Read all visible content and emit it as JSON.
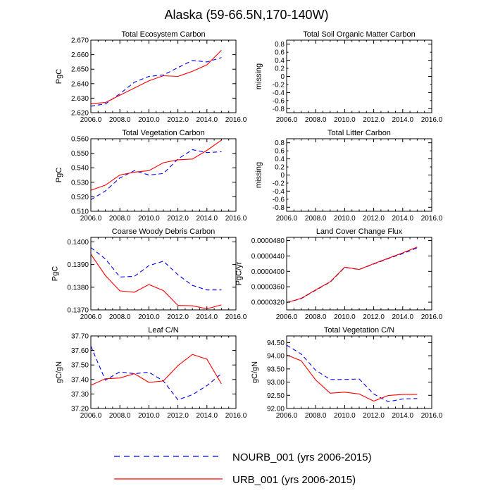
{
  "title": "Alaska (59-66.5N,170-140W)",
  "colors": {
    "nourb": "#0000ff",
    "urb": "#ff0000",
    "axis": "#000000"
  },
  "legend": {
    "nourb_label": "NOURB_001 (yrs 2006-2015)",
    "urb_label": "URB_001 (yrs 2006-2015)"
  },
  "chart_data": [
    {
      "type": "line",
      "title": "Total Ecosystem Carbon",
      "xlabel": "",
      "ylabel": "PgC",
      "xlim": [
        2006,
        2016
      ],
      "ylim": [
        2.62,
        2.67
      ],
      "xticks": [
        2006,
        2008,
        2010,
        2012,
        2014,
        2016
      ],
      "xtick_labels": [
        "2006.0",
        "2008.0",
        "2010.0",
        "2012.0",
        "2014.0",
        "2016.0"
      ],
      "yticks": [
        2.62,
        2.63,
        2.64,
        2.65,
        2.66,
        2.67
      ],
      "ytick_labels": [
        "2.620",
        "2.630",
        "2.640",
        "2.650",
        "2.660",
        "2.670"
      ],
      "x": [
        2006,
        2007,
        2008,
        2009,
        2010,
        2011,
        2012,
        2013,
        2014,
        2015
      ],
      "series": [
        {
          "name": "NOURB_001",
          "values": [
            2.6245,
            2.626,
            2.633,
            2.641,
            2.645,
            2.646,
            2.651,
            2.656,
            2.655,
            2.658
          ]
        },
        {
          "name": "URB_001",
          "values": [
            2.6262,
            2.627,
            2.632,
            2.637,
            2.642,
            2.6455,
            2.645,
            2.6485,
            2.653,
            2.663
          ]
        }
      ]
    },
    {
      "type": "line",
      "title": "Total Soil Organic Matter Carbon",
      "xlabel": "",
      "ylabel": "missing",
      "xlim": [
        2006,
        2016
      ],
      "ylim": [
        -0.9,
        0.9
      ],
      "xticks": [
        2006,
        2008,
        2010,
        2012,
        2014,
        2016
      ],
      "xtick_labels": [
        "2006.0",
        "2008.0",
        "2010.0",
        "2012.0",
        "2014.0",
        "2016.0"
      ],
      "yticks": [
        -0.8,
        -0.4,
        0,
        0.4,
        0.8
      ],
      "ytick_labels": [
        "-0.8",
        "-0.4",
        "0",
        "0.4",
        "0.8"
      ],
      "yticks_minor": [
        -0.6,
        -0.2,
        0.2,
        0.6
      ],
      "ytick_minor_labels": [
        "-0.6",
        "-0.2",
        "0.2",
        "0.6"
      ],
      "x": [],
      "series": []
    },
    {
      "type": "line",
      "title": "Total Vegetation Carbon",
      "xlabel": "",
      "ylabel": "PgC",
      "xlim": [
        2006,
        2016
      ],
      "ylim": [
        0.51,
        0.56
      ],
      "xticks": [
        2006,
        2008,
        2010,
        2012,
        2014,
        2016
      ],
      "xtick_labels": [
        "2006.0",
        "2008.0",
        "2010.0",
        "2012.0",
        "2014.0",
        "2016.0"
      ],
      "yticks": [
        0.51,
        0.52,
        0.53,
        0.54,
        0.55,
        0.56
      ],
      "ytick_labels": [
        "0.510",
        "0.520",
        "0.530",
        "0.540",
        "0.550",
        "0.560"
      ],
      "x": [
        2006,
        2007,
        2008,
        2009,
        2010,
        2011,
        2012,
        2013,
        2014,
        2015
      ],
      "series": [
        {
          "name": "NOURB_001",
          "values": [
            0.518,
            0.524,
            0.533,
            0.538,
            0.535,
            0.536,
            0.546,
            0.5525,
            0.5505,
            0.551
          ]
        },
        {
          "name": "URB_001",
          "values": [
            0.5245,
            0.528,
            0.535,
            0.537,
            0.538,
            0.5435,
            0.5455,
            0.546,
            0.552,
            0.559
          ]
        }
      ]
    },
    {
      "type": "line",
      "title": "Total Litter Carbon",
      "xlabel": "",
      "ylabel": "missing",
      "xlim": [
        2006,
        2016
      ],
      "ylim": [
        -0.9,
        0.9
      ],
      "xticks": [
        2006,
        2008,
        2010,
        2012,
        2014,
        2016
      ],
      "xtick_labels": [
        "2006.0",
        "2008.0",
        "2010.0",
        "2012.0",
        "2014.0",
        "2016.0"
      ],
      "yticks": [
        -0.8,
        -0.4,
        0,
        0.4,
        0.8
      ],
      "ytick_labels": [
        "-0.8",
        "-0.4",
        "0",
        "0.4",
        "0.8"
      ],
      "yticks_minor": [
        -0.6,
        -0.2,
        0.2,
        0.6
      ],
      "ytick_minor_labels": [
        "-0.6",
        "-0.2",
        "0.2",
        "0.6"
      ],
      "x": [],
      "series": []
    },
    {
      "type": "line",
      "title": "Coarse Woody Debris Carbon",
      "xlabel": "",
      "ylabel": "PgC",
      "xlim": [
        2006,
        2016
      ],
      "ylim": [
        0.137,
        0.1402
      ],
      "xticks": [
        2006,
        2008,
        2010,
        2012,
        2014,
        2016
      ],
      "xtick_labels": [
        "2006.0",
        "2008.0",
        "2010.0",
        "2012.0",
        "2014.0",
        "2016.0"
      ],
      "yticks": [
        0.137,
        0.138,
        0.139,
        0.14
      ],
      "ytick_labels": [
        "0.1370",
        "0.1380",
        "0.1390",
        "0.1400"
      ],
      "x": [
        2006,
        2007,
        2008,
        2009,
        2010,
        2011,
        2012,
        2013,
        2014,
        2015
      ],
      "series": [
        {
          "name": "NOURB_001",
          "values": [
            0.13975,
            0.13925,
            0.13845,
            0.13848,
            0.13895,
            0.13915,
            0.13855,
            0.13808,
            0.13788,
            0.13788
          ]
        },
        {
          "name": "URB_001",
          "values": [
            0.13945,
            0.13852,
            0.13784,
            0.13778,
            0.13812,
            0.13785,
            0.1372,
            0.13718,
            0.13705,
            0.13722
          ]
        }
      ]
    },
    {
      "type": "line",
      "title": "Land Cover Change Flux",
      "xlabel": "",
      "ylabel": "PgC/yr",
      "xlim": [
        2006,
        2016
      ],
      "ylim": [
        3e-05,
        4.883e-05
      ],
      "xticks": [
        2006,
        2008,
        2010,
        2012,
        2014,
        2016
      ],
      "xtick_labels": [
        "2006.0",
        "2008.0",
        "2010.0",
        "2012.0",
        "2014.0",
        "2016.0"
      ],
      "yticks": [
        3.2e-05,
        3.6e-05,
        4e-05,
        4.4e-05,
        4.8e-05
      ],
      "ytick_labels": [
        "0.0000320",
        "0.0000360",
        "0.0000400",
        "0.0000440",
        "0.0000480"
      ],
      "x": [
        2006,
        2007,
        2008,
        2009,
        2010,
        2011,
        2012,
        2013,
        2014,
        2015
      ],
      "series": [
        {
          "name": "NOURB_001",
          "values": [
            3.19e-05,
            3.29e-05,
            3.51e-05,
            3.72e-05,
            4.1e-05,
            4.05e-05,
            4.19e-05,
            4.33e-05,
            4.46e-05,
            4.61e-05
          ]
        },
        {
          "name": "URB_001",
          "values": [
            3.19e-05,
            3.3e-05,
            3.52e-05,
            3.73e-05,
            4.11e-05,
            4.05e-05,
            4.2e-05,
            4.34e-05,
            4.48e-05,
            4.63e-05
          ]
        }
      ]
    },
    {
      "type": "line",
      "title": "Leaf C/N",
      "xlabel": "",
      "ylabel": "gC/gN",
      "xlim": [
        2006,
        2016
      ],
      "ylim": [
        37.2,
        37.7
      ],
      "xticks": [
        2006,
        2008,
        2010,
        2012,
        2014,
        2016
      ],
      "xtick_labels": [
        "2006.0",
        "2008.0",
        "2010.0",
        "2012.0",
        "2014.0",
        "2016.0"
      ],
      "yticks": [
        37.2,
        37.3,
        37.4,
        37.5,
        37.6,
        37.7
      ],
      "ytick_labels": [
        "37.20",
        "37.30",
        "37.40",
        "37.50",
        "37.60",
        "37.70"
      ],
      "x": [
        2006,
        2007,
        2008,
        2009,
        2010,
        2011,
        2012,
        2013,
        2014,
        2015
      ],
      "series": [
        {
          "name": "NOURB_001",
          "values": [
            37.63,
            37.395,
            37.453,
            37.44,
            37.45,
            37.39,
            37.26,
            37.295,
            37.358,
            37.44
          ]
        },
        {
          "name": "URB_001",
          "values": [
            37.36,
            37.405,
            37.41,
            37.44,
            37.38,
            37.39,
            37.495,
            37.573,
            37.54,
            37.37
          ]
        }
      ]
    },
    {
      "type": "line",
      "title": "Total Vegetation C/N",
      "xlabel": "",
      "ylabel": "gC/gN",
      "xlim": [
        2006,
        2016
      ],
      "ylim": [
        92.0,
        94.75
      ],
      "xticks": [
        2006,
        2008,
        2010,
        2012,
        2014,
        2016
      ],
      "xtick_labels": [
        "2006.0",
        "2008.0",
        "2010.0",
        "2012.0",
        "2014.0",
        "2016.0"
      ],
      "yticks": [
        92.0,
        92.5,
        93.0,
        93.5,
        94.0,
        94.5
      ],
      "ytick_labels": [
        "92.00",
        "92.50",
        "93.00",
        "93.50",
        "94.00",
        "94.50"
      ],
      "x": [
        2006,
        2007,
        2008,
        2009,
        2010,
        2011,
        2012,
        2013,
        2014,
        2015
      ],
      "series": [
        {
          "name": "NOURB_001",
          "values": [
            94.4,
            94.07,
            93.45,
            93.1,
            93.1,
            93.12,
            92.55,
            92.26,
            92.36,
            92.38
          ]
        },
        {
          "name": "URB_001",
          "values": [
            94.03,
            93.81,
            93.08,
            92.58,
            92.62,
            92.55,
            92.28,
            92.49,
            92.53,
            92.53
          ]
        }
      ]
    }
  ]
}
